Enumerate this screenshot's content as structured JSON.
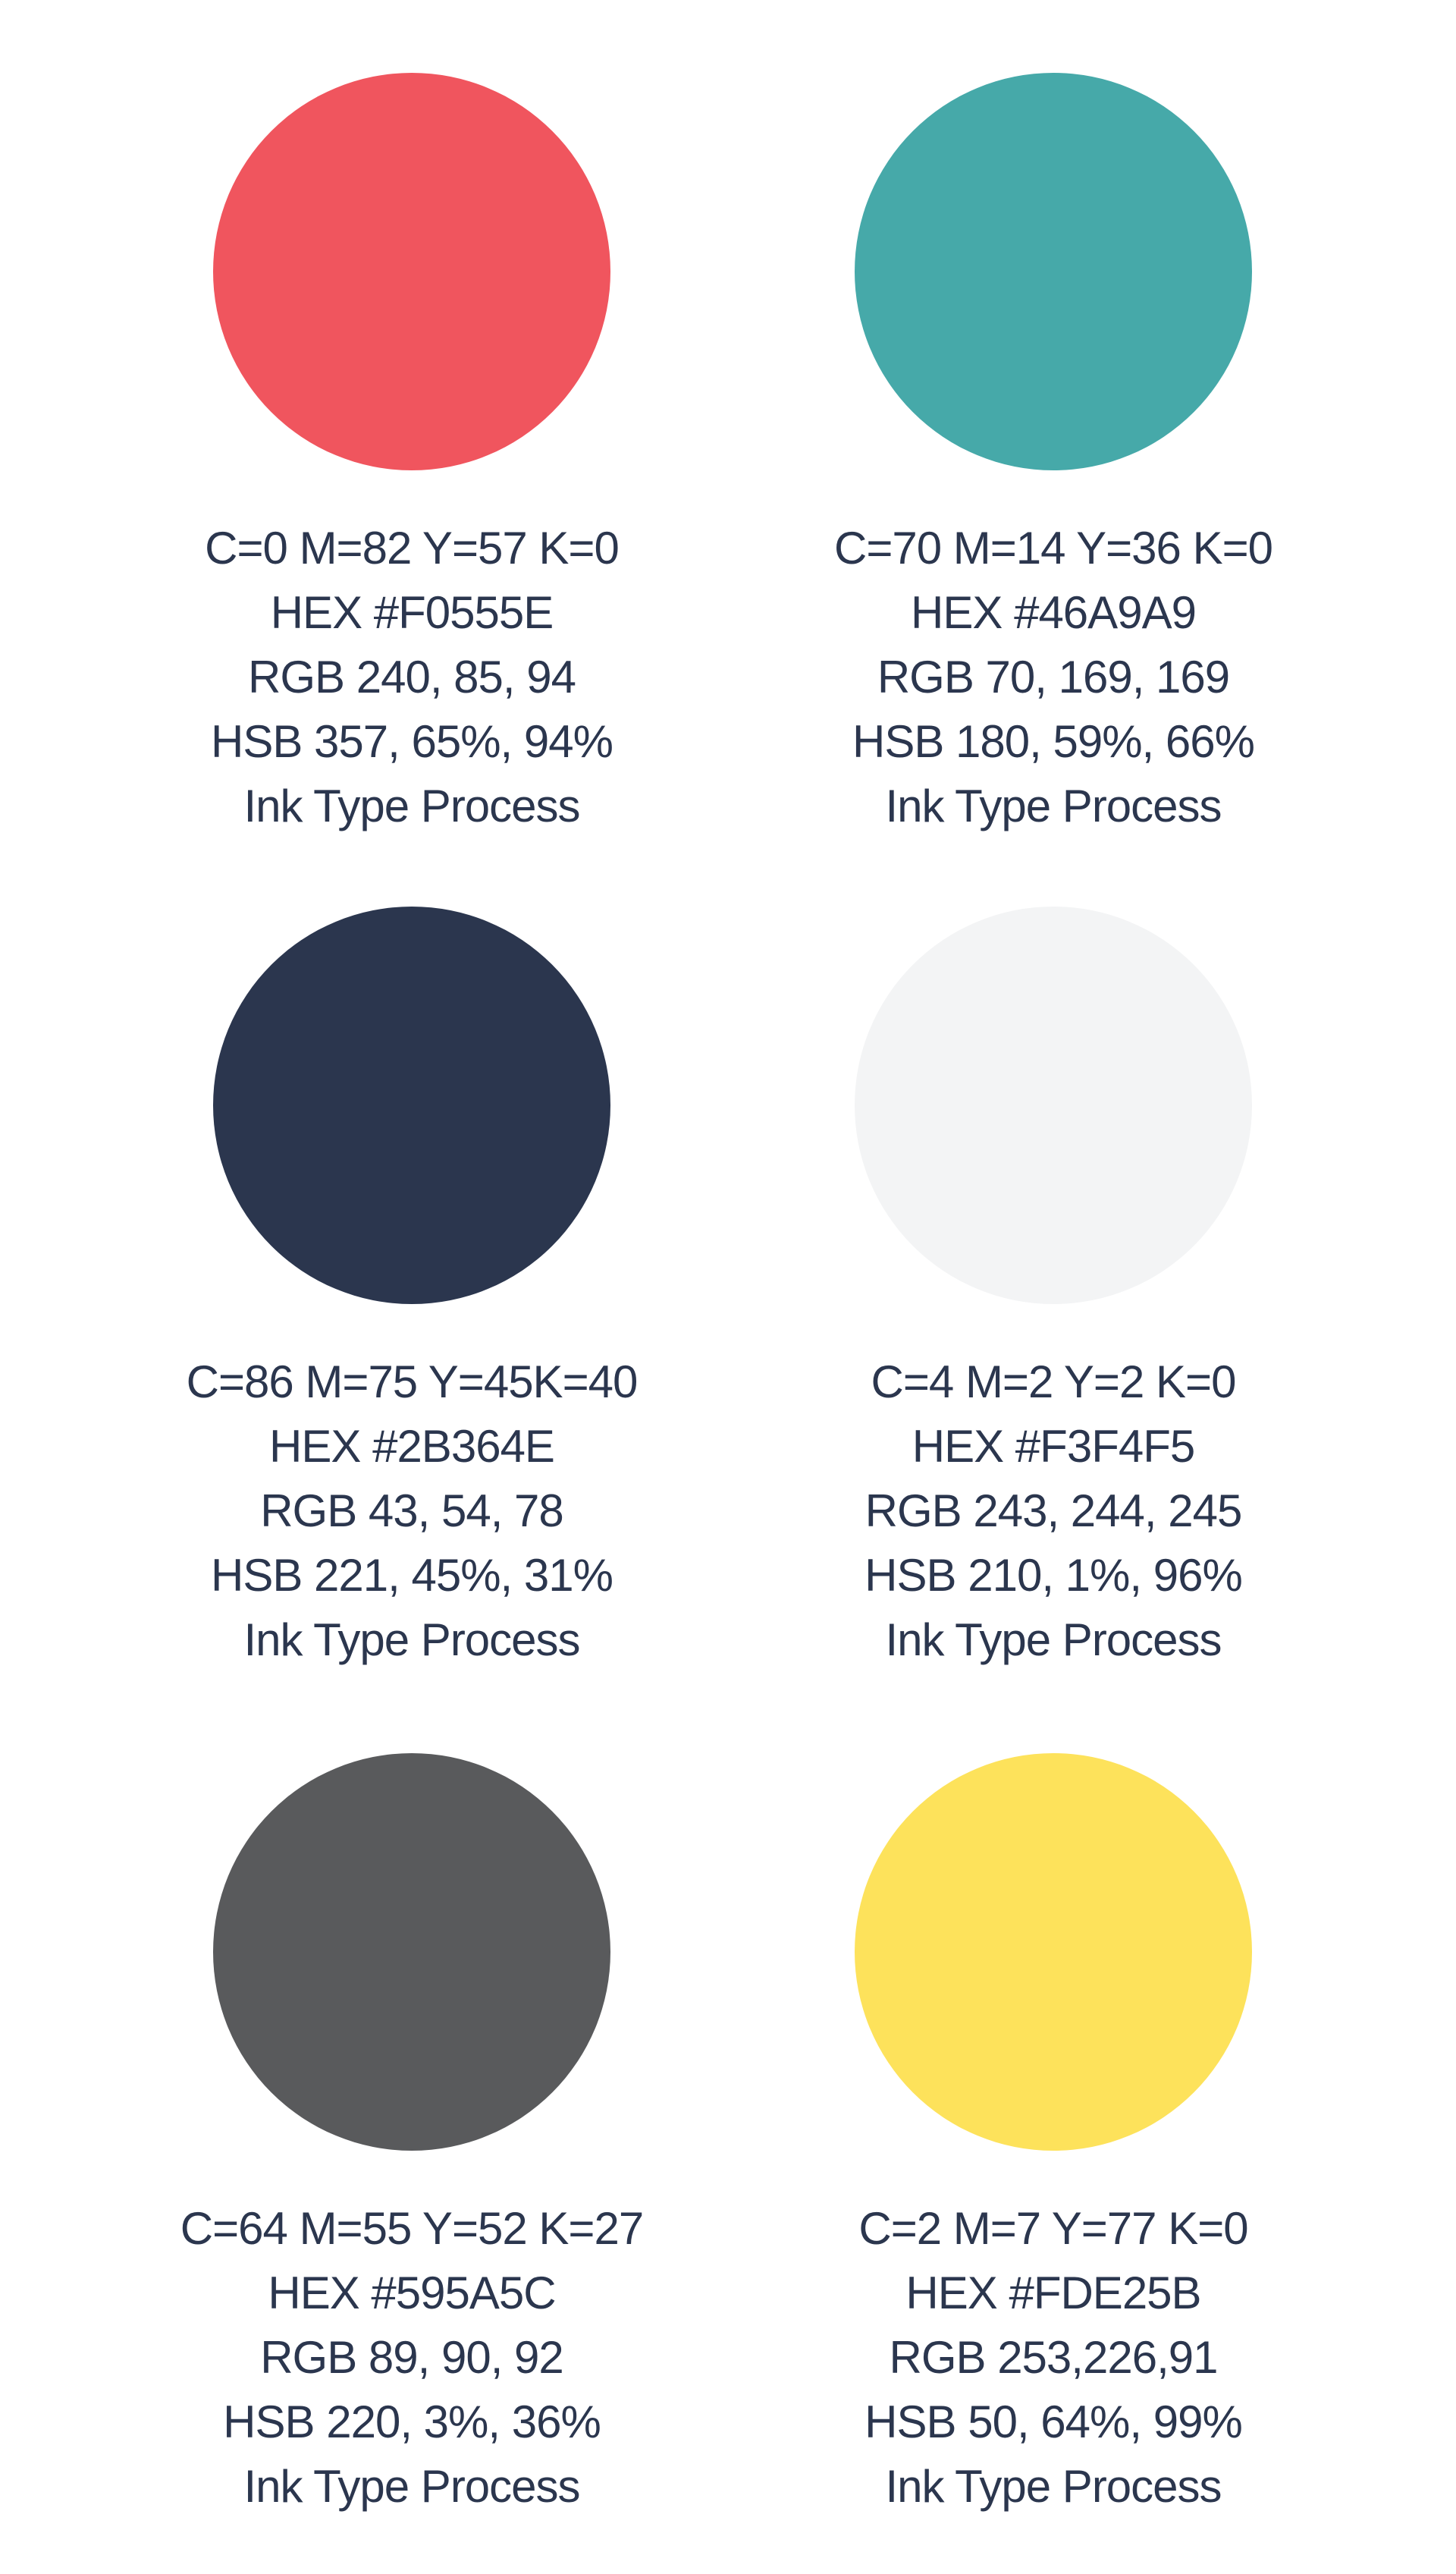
{
  "swatches": [
    {
      "color": "#F0555E",
      "cmyk": "C=0 M=82 Y=57 K=0",
      "hex": "HEX #F0555E",
      "rgb": "RGB 240, 85, 94",
      "hsb": "HSB 357, 65%, 94%",
      "ink": "Ink Type Process"
    },
    {
      "color": "#46A9A9",
      "cmyk": "C=70 M=14 Y=36 K=0",
      "hex": "HEX #46A9A9",
      "rgb": "RGB 70, 169, 169",
      "hsb": "HSB 180, 59%, 66%",
      "ink": "Ink Type Process"
    },
    {
      "color": "#2B364E",
      "cmyk": "C=86 M=75 Y=45K=40",
      "hex": "HEX #2B364E",
      "rgb": "RGB 43, 54, 78",
      "hsb": "HSB 221, 45%, 31%",
      "ink": "Ink Type Process"
    },
    {
      "color": "#F3F4F5",
      "cmyk": "C=4 M=2 Y=2 K=0",
      "hex": "HEX #F3F4F5",
      "rgb": "RGB 243, 244, 245",
      "hsb": "HSB 210, 1%, 96%",
      "ink": "Ink Type Process"
    },
    {
      "color": "#595A5C",
      "cmyk": "C=64 M=55 Y=52 K=27",
      "hex": "HEX #595A5C",
      "rgb": "RGB 89, 90, 92",
      "hsb": "HSB 220, 3%, 36%",
      "ink": "Ink Type Process"
    },
    {
      "color": "#FDE25B",
      "cmyk": "C=2 M=7 Y=77 K=0",
      "hex": "HEX #FDE25B",
      "rgb": "RGB 253,226,91",
      "hsb": "HSB 50, 64%, 99%",
      "ink": "Ink Type Process"
    }
  ],
  "text_color": "#2B364E"
}
